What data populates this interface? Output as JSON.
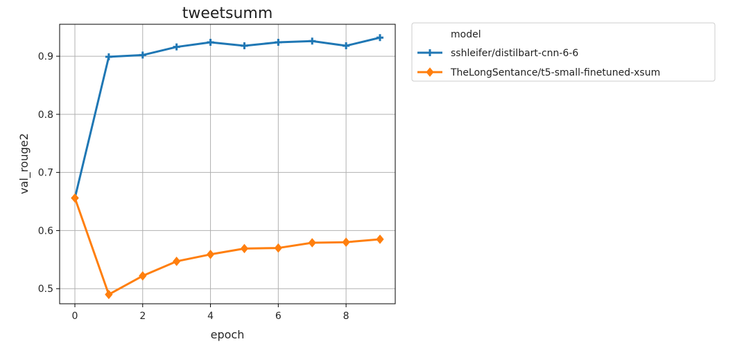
{
  "chart_data": {
    "type": "line",
    "title": "tweetsumm",
    "xlabel": "epoch",
    "ylabel": "val_rouge2",
    "xlim": [
      -0.45,
      9.45
    ],
    "ylim": [
      0.474,
      0.955
    ],
    "xticks": [
      0,
      2,
      4,
      6,
      8
    ],
    "xtick_labels": [
      "0",
      "2",
      "4",
      "6",
      "8"
    ],
    "yticks": [
      0.5,
      0.6,
      0.7,
      0.8,
      0.9
    ],
    "ytick_labels": [
      "0.5",
      "0.6",
      "0.7",
      "0.8",
      "0.9"
    ],
    "grid": true,
    "legend_title": "model",
    "legend_position": "outside-upper-right",
    "x": [
      0,
      1,
      2,
      3,
      4,
      5,
      6,
      7,
      8,
      9
    ],
    "series": [
      {
        "name": "sshleifer/distilbart-cnn-6-6",
        "color": "#1f77b4",
        "marker": "plus",
        "values": [
          0.656,
          0.899,
          0.902,
          0.916,
          0.924,
          0.918,
          0.924,
          0.926,
          0.918,
          0.932
        ]
      },
      {
        "name": "TheLongSentance/t5-small-finetuned-xsum",
        "color": "#ff7f0e",
        "marker": "diamond",
        "values": [
          0.656,
          0.49,
          0.522,
          0.547,
          0.559,
          0.569,
          0.57,
          0.579,
          0.58,
          0.585
        ]
      }
    ]
  }
}
